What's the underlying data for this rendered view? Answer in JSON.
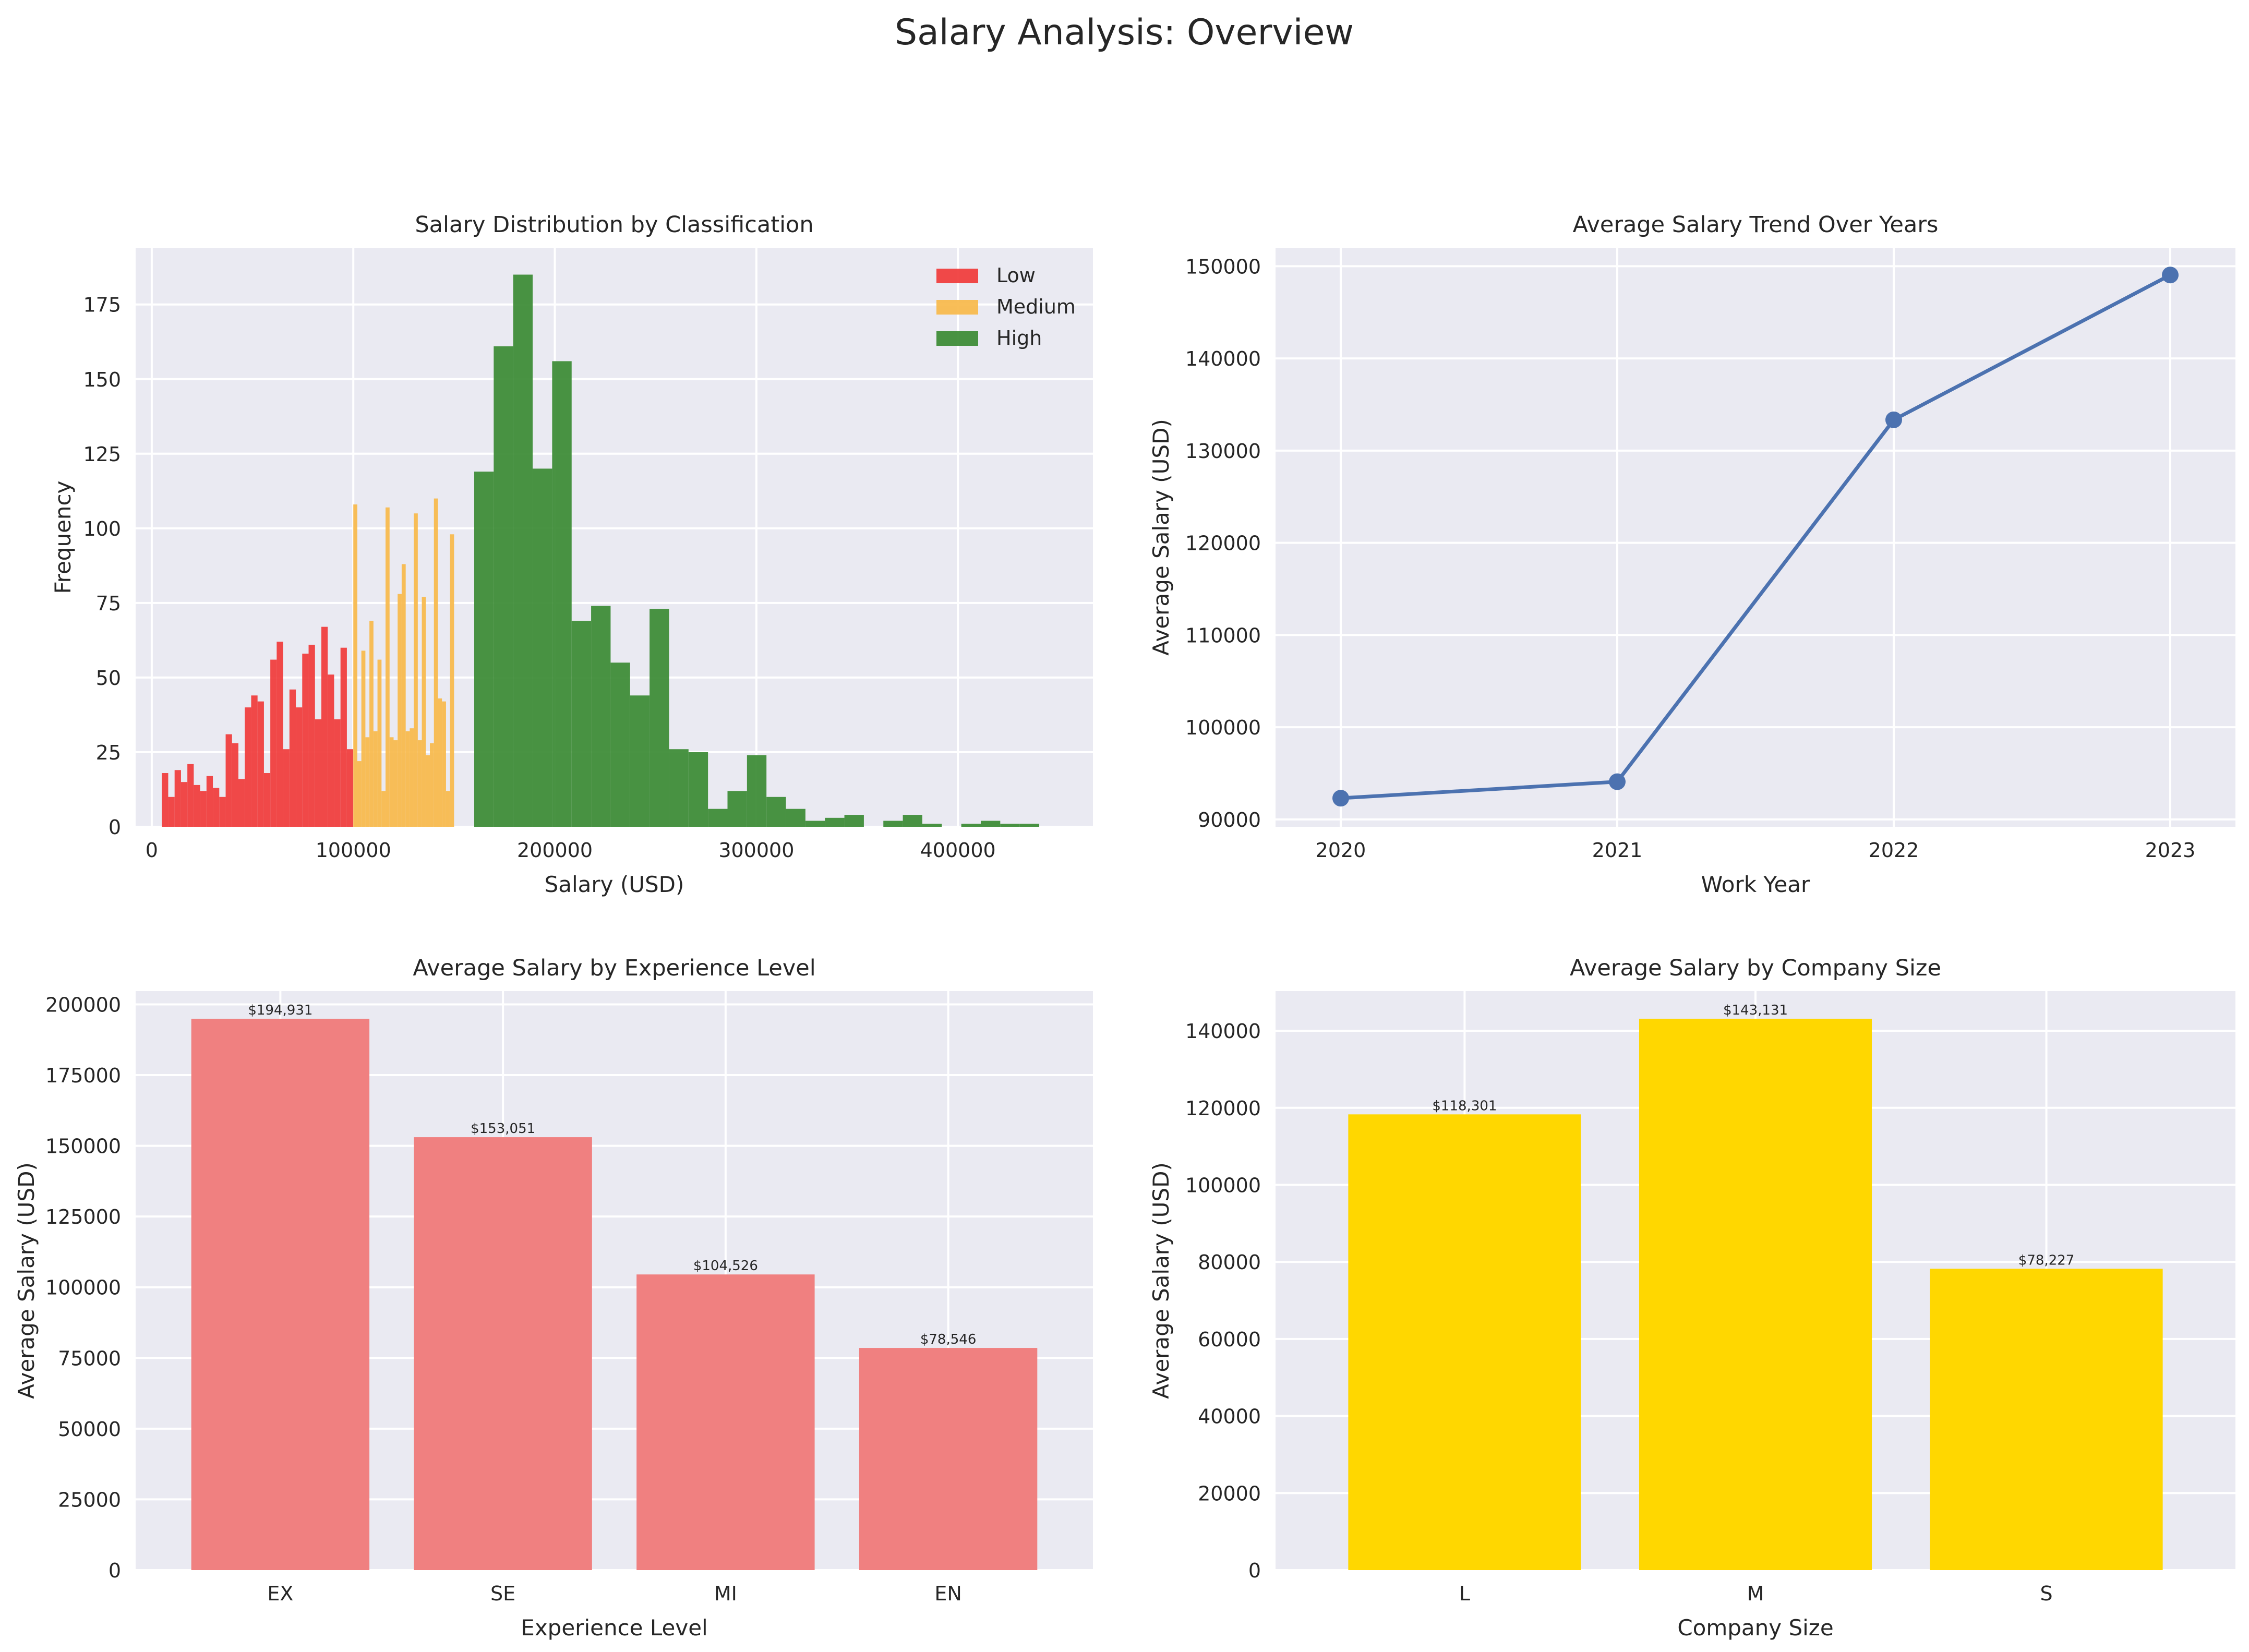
{
  "figure": {
    "title": "Salary Analysis: Overview"
  },
  "colors": {
    "axes_bg": "#EAEAF2",
    "grid": "#FFFFFF",
    "low": "#F03A3A",
    "medium": "#F7B94A",
    "high": "#3A8A33",
    "line": "#4C72B0",
    "experience_bar": "#F08080",
    "company_bar": "#FFD700"
  },
  "chart_data": [
    {
      "id": "hist",
      "type": "bar",
      "title": "Salary Distribution by Classification",
      "xlabel": "Salary (USD)",
      "ylabel": "Frequency",
      "xlim": [
        -8000,
        467000
      ],
      "ylim": [
        0,
        194
      ],
      "xticks": [
        0,
        100000,
        200000,
        300000,
        400000
      ],
      "yticks": [
        0,
        25,
        50,
        75,
        100,
        125,
        150,
        175
      ],
      "legend": {
        "placement": "top-right",
        "entries": [
          "Low",
          "Medium",
          "High"
        ]
      },
      "series": [
        {
          "name": "Low",
          "color_key": "low",
          "bin_start": 5000,
          "bin_width": 3166,
          "values": [
            18,
            10,
            19,
            15,
            21,
            14,
            12,
            17,
            13,
            10,
            31,
            28,
            16,
            40,
            44,
            42,
            18,
            56,
            62,
            26,
            46,
            40,
            58,
            61,
            36,
            67,
            51,
            36,
            60,
            26
          ]
        },
        {
          "name": "Medium",
          "color_key": "medium",
          "bin_start": 100000,
          "bin_width": 2000,
          "values": [
            108,
            22,
            59,
            30,
            69,
            32,
            56,
            12,
            107,
            30,
            29,
            78,
            88,
            32,
            33,
            105,
            29,
            77,
            24,
            28,
            110,
            43,
            42,
            12,
            98
          ]
        },
        {
          "name": "High",
          "color_key": "high",
          "bin_start": 160000,
          "bin_width": 9667,
          "values": [
            119,
            161,
            185,
            120,
            156,
            69,
            74,
            55,
            44,
            73,
            26,
            25,
            6,
            12,
            24,
            10,
            6,
            2,
            3,
            4,
            0,
            2,
            4,
            1,
            0,
            1,
            2,
            1,
            1,
            0
          ]
        }
      ]
    },
    {
      "id": "trend",
      "type": "line",
      "title": "Average Salary Trend Over Years",
      "xlabel": "Work Year",
      "ylabel": "Average Salary (USD)",
      "x": [
        "2020",
        "2021",
        "2022",
        "2023"
      ],
      "values": [
        92302,
        94087,
        133339,
        149046
      ],
      "ylim": [
        89200,
        152000
      ],
      "yticks": [
        90000,
        100000,
        110000,
        120000,
        130000,
        140000,
        150000
      ],
      "marker": "circle"
    },
    {
      "id": "experience",
      "type": "bar",
      "title": "Average Salary by Experience Level",
      "xlabel": "Experience Level",
      "ylabel": "Average Salary (USD)",
      "categories": [
        "EX",
        "SE",
        "MI",
        "EN"
      ],
      "values": [
        194931,
        153051,
        104526,
        78546
      ],
      "data_labels": [
        "$194,931",
        "$153,051",
        "$104,526",
        "$78,546"
      ],
      "ylim": [
        0,
        204700
      ],
      "yticks": [
        0,
        25000,
        50000,
        75000,
        100000,
        125000,
        150000,
        175000,
        200000
      ]
    },
    {
      "id": "company",
      "type": "bar",
      "title": "Average Salary by Company Size",
      "xlabel": "Company Size",
      "ylabel": "Average Salary (USD)",
      "categories": [
        "L",
        "M",
        "S"
      ],
      "values": [
        118301,
        143131,
        78227
      ],
      "data_labels": [
        "$118,301",
        "$143,131",
        "$78,227"
      ],
      "ylim": [
        0,
        150300
      ],
      "yticks": [
        0,
        20000,
        40000,
        60000,
        80000,
        100000,
        120000,
        140000
      ]
    }
  ]
}
